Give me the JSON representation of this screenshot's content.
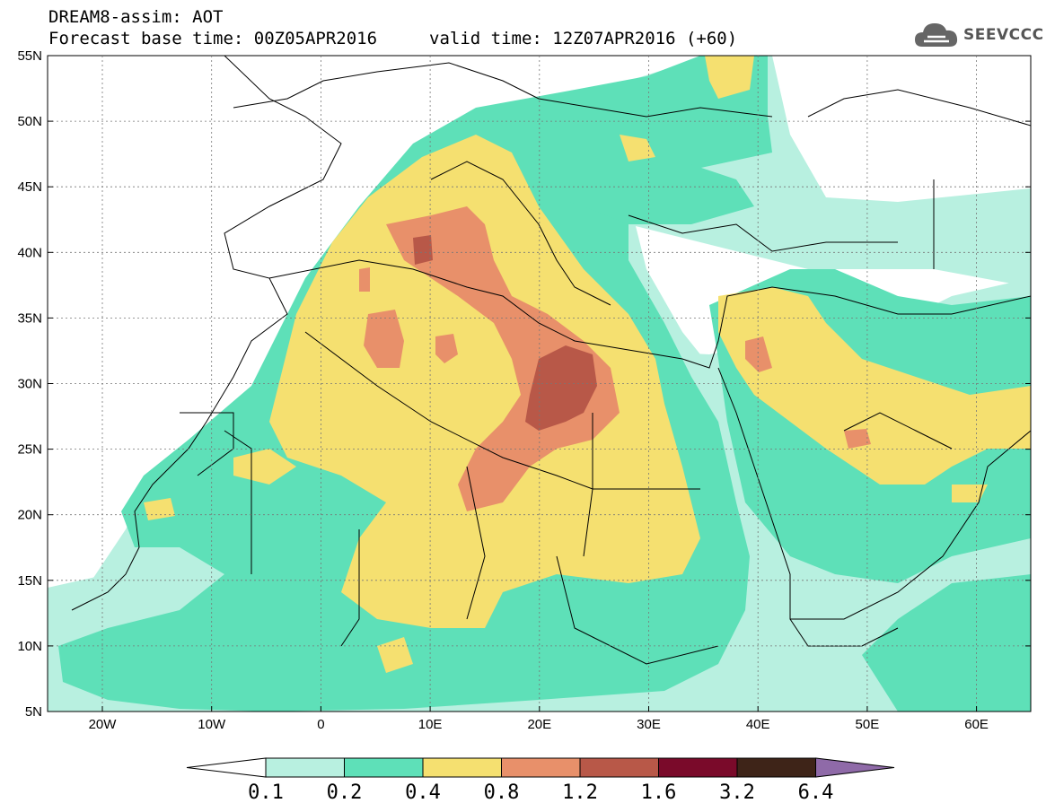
{
  "header": {
    "title": "DREAM8-assim: AOT",
    "base_time": "Forecast base time: 00Z05APR2016",
    "valid_time": "valid time: 12Z07APR2016 (+60)"
  },
  "logo": {
    "text": "SEEVCCC",
    "icon": "cloud-icon"
  },
  "axes": {
    "lat_labels": [
      "55N",
      "50N",
      "45N",
      "40N",
      "35N",
      "30N",
      "25N",
      "20N",
      "15N",
      "10N",
      "5N"
    ],
    "lon_labels": [
      "20W",
      "10W",
      "0",
      "10E",
      "20E",
      "30E",
      "40E",
      "50E",
      "60E"
    ]
  },
  "colorbar": {
    "labels": [
      "0.1",
      "0.2",
      "0.4",
      "0.8",
      "1.2",
      "1.6",
      "3.2",
      "6.4"
    ],
    "colors": [
      "#ffffff",
      "#b8f0e0",
      "#5ee0b8",
      "#f5e070",
      "#e8906a",
      "#b85848",
      "#7a0a2a",
      "#3e2418",
      "#8f6aa8"
    ]
  },
  "colors": {
    "light": "#b8f0e0",
    "green": "#5ee0b8",
    "yellow": "#f5e070",
    "orange": "#e8906a",
    "red": "#b85848"
  }
}
